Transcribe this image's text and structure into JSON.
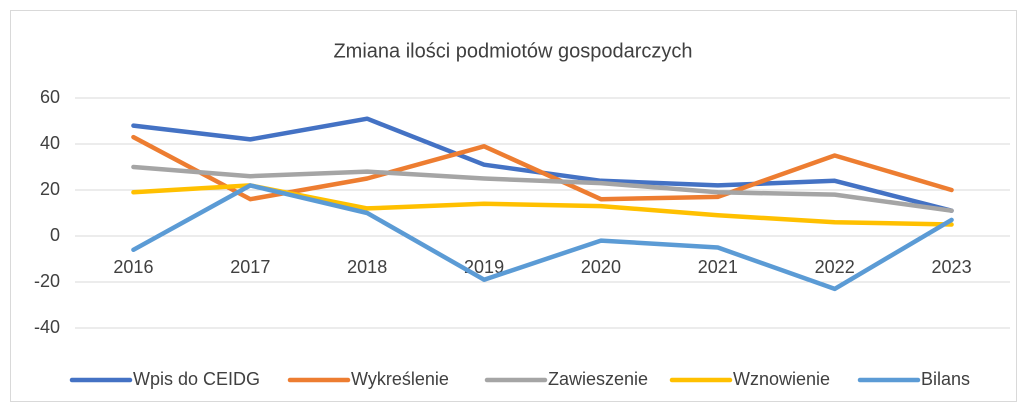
{
  "chart_data": {
    "type": "line",
    "title": "Zmiana ilości podmiotów gospodarczych",
    "categories": [
      "2016",
      "2017",
      "2018",
      "2019",
      "2020",
      "2021",
      "2022",
      "2023"
    ],
    "series": [
      {
        "name": "Wpis do CEIDG",
        "color": "#4472c4",
        "values": [
          48,
          42,
          51,
          31,
          24,
          22,
          24,
          11
        ]
      },
      {
        "name": "Wykreślenie",
        "color": "#ed7d31",
        "values": [
          43,
          16,
          25,
          39,
          16,
          17,
          35,
          20
        ]
      },
      {
        "name": "Zawieszenie",
        "color": "#a5a5a5",
        "values": [
          30,
          26,
          28,
          25,
          23,
          19,
          18,
          11
        ]
      },
      {
        "name": "Wznowienie",
        "color": "#ffc000",
        "values": [
          19,
          22,
          12,
          14,
          13,
          9,
          6,
          5
        ]
      },
      {
        "name": "Bilans",
        "color": "#5b9bd5",
        "values": [
          -6,
          22,
          10,
          -19,
          -2,
          -5,
          -23,
          7
        ]
      }
    ],
    "ylim": [
      -40,
      60
    ],
    "yticks": [
      -40,
      -20,
      0,
      20,
      40,
      60
    ],
    "grid": true,
    "legend": "bottom"
  }
}
